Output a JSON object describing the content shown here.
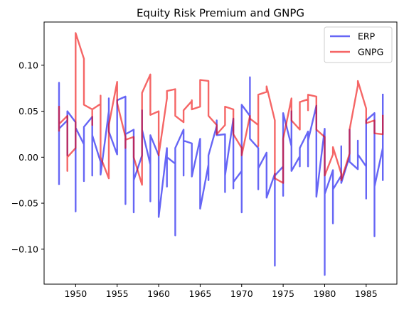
{
  "chart_data": {
    "type": "line",
    "title": "Equity Risk Premium and GNPG",
    "xlabel": "",
    "ylabel": "",
    "xlim": [
      1946.2,
      1988.7
    ],
    "ylim": [
      -0.138,
      0.147
    ],
    "xticks": [
      1950,
      1955,
      1960,
      1965,
      1970,
      1975,
      1980,
      1985
    ],
    "yticks": [
      -0.1,
      -0.05,
      0.0,
      0.05,
      0.1
    ],
    "ytick_labels": [
      "−0.10",
      "−0.05",
      "0.00",
      "0.05",
      "0.10"
    ],
    "grid": false,
    "legend_position": "top-right",
    "series": [
      {
        "name": "ERP",
        "color": "#0000ee",
        "points": [
          [
            1948.0,
            -0.03
          ],
          [
            1948.0,
            0.081
          ],
          [
            1948.0,
            0.031
          ],
          [
            1949.0,
            0.04
          ],
          [
            1949.0,
            0.002
          ],
          [
            1949.0,
            0.05
          ],
          [
            1950.0,
            0.038
          ],
          [
            1950.0,
            -0.059
          ],
          [
            1950.0,
            0.032
          ],
          [
            1951.0,
            0.014
          ],
          [
            1951.0,
            -0.026
          ],
          [
            1951.0,
            0.033
          ],
          [
            1952.0,
            0.044
          ],
          [
            1952.0,
            -0.02
          ],
          [
            1952.0,
            0.024
          ],
          [
            1953.0,
            -0.005
          ],
          [
            1953.0,
            -0.019
          ],
          [
            1954.0,
            0.05
          ],
          [
            1954.0,
            0.064
          ],
          [
            1954.0,
            0.028
          ],
          [
            1955.0,
            0.003
          ],
          [
            1955.0,
            0.062
          ],
          [
            1956.0,
            0.066
          ],
          [
            1956.0,
            -0.051
          ],
          [
            1956.0,
            0.025
          ],
          [
            1957.0,
            0.03
          ],
          [
            1957.0,
            -0.06
          ],
          [
            1957.0,
            -0.025
          ],
          [
            1958.0,
            0.002
          ],
          [
            1958.0,
            0.051
          ],
          [
            1958.0,
            0.03
          ],
          [
            1959.0,
            -0.008
          ],
          [
            1959.0,
            -0.048
          ],
          [
            1959.0,
            0.024
          ],
          [
            1960.0,
            0.002
          ],
          [
            1960.0,
            -0.015
          ],
          [
            1960.0,
            -0.065
          ],
          [
            1961.0,
            0.01
          ],
          [
            1961.0,
            -0.032
          ],
          [
            1961.0,
            0.0
          ],
          [
            1962.0,
            -0.007
          ],
          [
            1962.0,
            -0.085
          ],
          [
            1962.0,
            0.01
          ],
          [
            1963.0,
            0.03
          ],
          [
            1963.0,
            -0.02
          ],
          [
            1963.0,
            0.018
          ],
          [
            1964.0,
            0.015
          ],
          [
            1964.0,
            -0.021
          ],
          [
            1965.0,
            0.02
          ],
          [
            1965.0,
            0.018
          ],
          [
            1965.0,
            -0.056
          ],
          [
            1966.0,
            -0.008
          ],
          [
            1966.0,
            -0.025
          ],
          [
            1966.0,
            0.002
          ],
          [
            1967.0,
            0.034
          ],
          [
            1967.0,
            0.04
          ],
          [
            1967.0,
            0.024
          ],
          [
            1968.0,
            0.025
          ],
          [
            1968.0,
            -0.038
          ],
          [
            1968.0,
            -0.02
          ],
          [
            1969.0,
            0.042
          ],
          [
            1969.0,
            -0.034
          ],
          [
            1969.0,
            -0.027
          ],
          [
            1970.0,
            -0.015
          ],
          [
            1970.0,
            -0.06
          ],
          [
            1970.0,
            0.057
          ],
          [
            1971.0,
            0.045
          ],
          [
            1971.0,
            0.087
          ],
          [
            1971.0,
            0.02
          ],
          [
            1972.0,
            0.01
          ],
          [
            1972.0,
            -0.035
          ],
          [
            1972.0,
            -0.012
          ],
          [
            1973.0,
            0.005
          ],
          [
            1973.0,
            -0.023
          ],
          [
            1973.0,
            -0.044
          ],
          [
            1974.0,
            -0.018
          ],
          [
            1974.0,
            -0.118
          ],
          [
            1974.0,
            -0.02
          ],
          [
            1975.0,
            -0.01
          ],
          [
            1975.0,
            -0.042
          ],
          [
            1975.0,
            0.048
          ],
          [
            1976.0,
            0.012
          ],
          [
            1976.0,
            0.05
          ],
          [
            1976.0,
            -0.015
          ],
          [
            1977.0,
            0.001
          ],
          [
            1977.0,
            -0.01
          ],
          [
            1977.0,
            0.01
          ],
          [
            1978.0,
            0.028
          ],
          [
            1978.0,
            -0.01
          ],
          [
            1978.0,
            0.018
          ],
          [
            1979.0,
            0.056
          ],
          [
            1979.0,
            -0.01
          ],
          [
            1979.0,
            -0.043
          ],
          [
            1980.0,
            0.031
          ],
          [
            1980.0,
            -0.128
          ],
          [
            1980.0,
            -0.04
          ],
          [
            1981.0,
            -0.014
          ],
          [
            1981.0,
            -0.072
          ],
          [
            1981.0,
            -0.035
          ],
          [
            1982.0,
            -0.02
          ],
          [
            1982.0,
            0.012
          ],
          [
            1982.0,
            -0.028
          ],
          [
            1983.0,
            0.001
          ],
          [
            1983.0,
            0.03
          ],
          [
            1983.0,
            -0.005
          ],
          [
            1984.0,
            -0.013
          ],
          [
            1984.0,
            0.018
          ],
          [
            1984.0,
            0.003
          ],
          [
            1985.0,
            -0.01
          ],
          [
            1985.0,
            -0.045
          ],
          [
            1985.0,
            0.04
          ],
          [
            1986.0,
            0.048
          ],
          [
            1986.0,
            -0.086
          ],
          [
            1986.0,
            -0.032
          ],
          [
            1987.0,
            0.01
          ],
          [
            1987.0,
            -0.025
          ],
          [
            1987.0,
            0.069
          ]
        ]
      },
      {
        "name": "GNPG",
        "color": "#ee0000",
        "points": [
          [
            1948.0,
            0.028
          ],
          [
            1948.0,
            0.055
          ],
          [
            1948.0,
            0.036
          ],
          [
            1949.0,
            0.045
          ],
          [
            1949.0,
            -0.015
          ],
          [
            1949.0,
            0.0
          ],
          [
            1950.0,
            0.01
          ],
          [
            1950.0,
            0.135
          ],
          [
            1951.0,
            0.107
          ],
          [
            1951.0,
            0.057
          ],
          [
            1952.0,
            0.052
          ],
          [
            1952.0,
            0.035
          ],
          [
            1952.0,
            0.052
          ],
          [
            1953.0,
            0.058
          ],
          [
            1953.0,
            0.067
          ],
          [
            1953.0,
            0.0
          ],
          [
            1954.0,
            -0.023
          ],
          [
            1954.0,
            0.035
          ],
          [
            1955.0,
            0.082
          ],
          [
            1955.0,
            0.059
          ],
          [
            1956.0,
            0.022
          ],
          [
            1956.0,
            0.01
          ],
          [
            1956.0,
            0.019
          ],
          [
            1957.0,
            0.022
          ],
          [
            1957.0,
            0.0
          ],
          [
            1958.0,
            -0.03
          ],
          [
            1958.0,
            0.04
          ],
          [
            1958.0,
            0.07
          ],
          [
            1959.0,
            0.09
          ],
          [
            1959.0,
            0.046
          ],
          [
            1960.0,
            0.05
          ],
          [
            1960.0,
            0.045
          ],
          [
            1960.0,
            0.002
          ],
          [
            1961.0,
            0.064
          ],
          [
            1961.0,
            0.072
          ],
          [
            1962.0,
            0.074
          ],
          [
            1962.0,
            0.045
          ],
          [
            1963.0,
            0.038
          ],
          [
            1963.0,
            0.051
          ],
          [
            1964.0,
            0.061
          ],
          [
            1964.0,
            0.062
          ],
          [
            1964.0,
            0.052
          ],
          [
            1965.0,
            0.055
          ],
          [
            1965.0,
            0.084
          ],
          [
            1966.0,
            0.083
          ],
          [
            1966.0,
            0.045
          ],
          [
            1967.0,
            0.035
          ],
          [
            1967.0,
            0.025
          ],
          [
            1968.0,
            0.035
          ],
          [
            1968.0,
            0.04
          ],
          [
            1968.0,
            0.055
          ],
          [
            1969.0,
            0.052
          ],
          [
            1969.0,
            0.025
          ],
          [
            1970.0,
            0.01
          ],
          [
            1970.0,
            0.002
          ],
          [
            1971.0,
            0.045
          ],
          [
            1971.0,
            0.042
          ],
          [
            1972.0,
            0.035
          ],
          [
            1972.0,
            0.012
          ],
          [
            1972.0,
            0.068
          ],
          [
            1973.0,
            0.071
          ],
          [
            1973.0,
            0.077
          ],
          [
            1974.0,
            0.04
          ],
          [
            1974.0,
            0.01
          ],
          [
            1974.0,
            -0.023
          ],
          [
            1975.0,
            -0.028
          ],
          [
            1975.0,
            -0.012
          ],
          [
            1975.0,
            0.02
          ],
          [
            1976.0,
            0.064
          ],
          [
            1976.0,
            0.04
          ],
          [
            1977.0,
            0.03
          ],
          [
            1977.0,
            0.05
          ],
          [
            1977.0,
            0.06
          ],
          [
            1978.0,
            0.063
          ],
          [
            1978.0,
            0.051
          ],
          [
            1978.0,
            0.068
          ],
          [
            1979.0,
            0.066
          ],
          [
            1979.0,
            0.03
          ],
          [
            1980.0,
            0.022
          ],
          [
            1980.0,
            -0.005
          ],
          [
            1980.0,
            -0.02
          ],
          [
            1981.0,
            0.003
          ],
          [
            1981.0,
            0.011
          ],
          [
            1982.0,
            -0.018
          ],
          [
            1982.0,
            -0.025
          ],
          [
            1983.0,
            0.004
          ],
          [
            1983.0,
            0.03
          ],
          [
            1984.0,
            0.078
          ],
          [
            1984.0,
            0.083
          ],
          [
            1985.0,
            0.053
          ],
          [
            1985.0,
            0.047
          ],
          [
            1985.0,
            0.037
          ],
          [
            1986.0,
            0.04
          ],
          [
            1986.0,
            0.039
          ],
          [
            1986.0,
            0.026
          ],
          [
            1987.0,
            0.025
          ],
          [
            1987.0,
            0.046
          ]
        ]
      }
    ]
  }
}
